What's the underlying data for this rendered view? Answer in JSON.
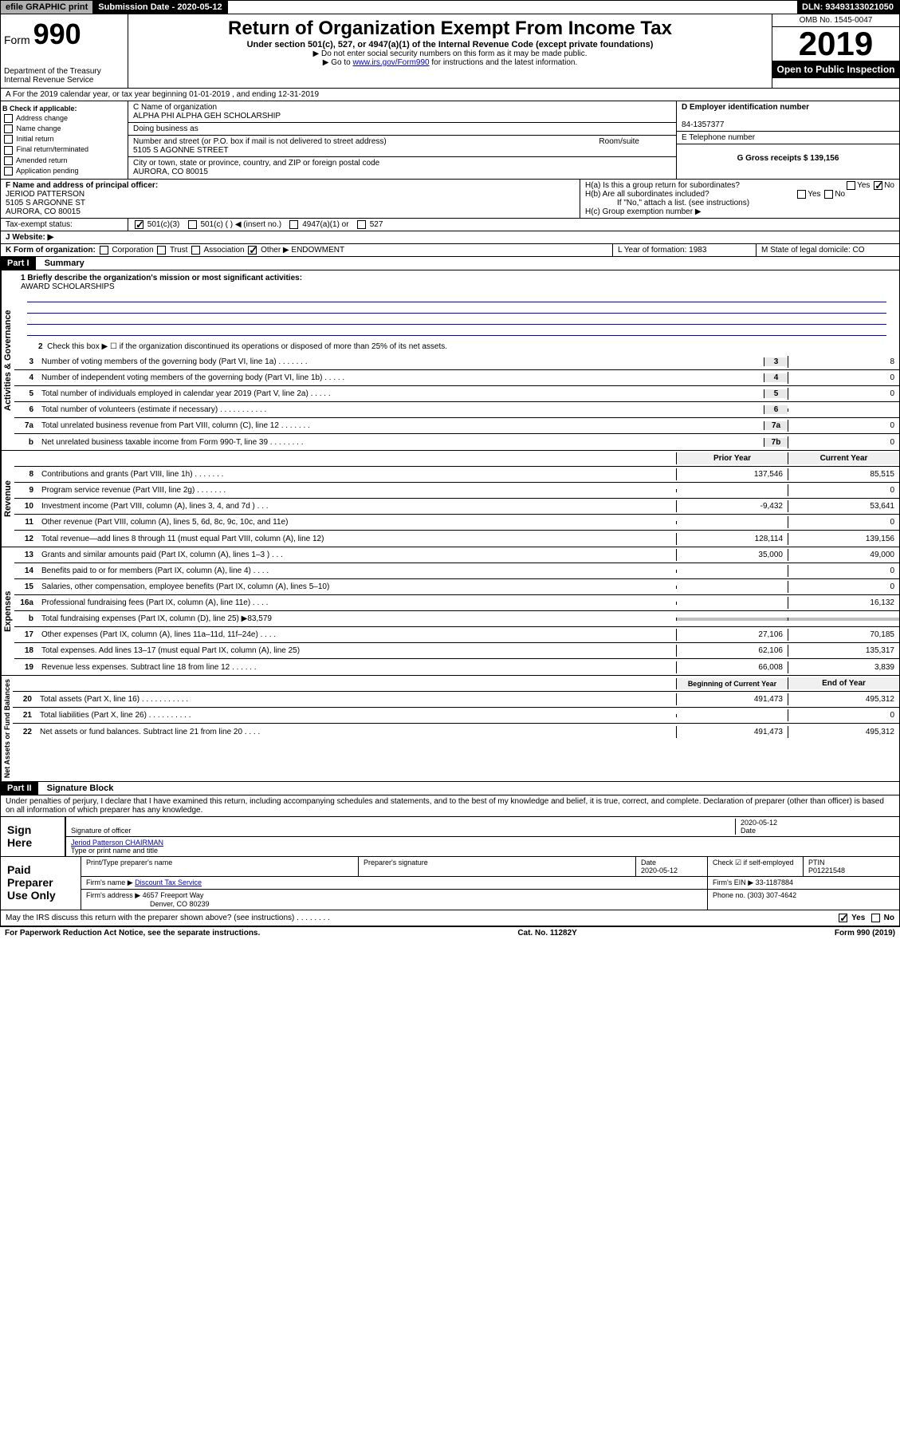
{
  "top": {
    "efile": "efile GRAPHIC print",
    "sub_date_label": "Submission Date - 2020-05-12",
    "dln": "DLN: 93493133021050"
  },
  "header": {
    "form_prefix": "Form",
    "form_num": "990",
    "dept": "Department of the Treasury",
    "irs": "Internal Revenue Service",
    "title": "Return of Organization Exempt From Income Tax",
    "subtitle": "Under section 501(c), 527, or 4947(a)(1) of the Internal Revenue Code (except private foundations)",
    "note1": "▶ Do not enter social security numbers on this form as it may be made public.",
    "note2_pre": "▶ Go to ",
    "note2_link": "www.irs.gov/Form990",
    "note2_post": " for instructions and the latest information.",
    "omb": "OMB No. 1545-0047",
    "year": "2019",
    "open": "Open to Public Inspection"
  },
  "period": {
    "text": "A For the 2019 calendar year, or tax year beginning 01-01-2019    , and ending 12-31-2019"
  },
  "sectionB": {
    "label": "B Check if applicable:",
    "items": [
      "Address change",
      "Name change",
      "Initial return",
      "Final return/terminated",
      "Amended return",
      "Application pending"
    ]
  },
  "sectionC": {
    "name_label": "C Name of organization",
    "name": "ALPHA PHI ALPHA GEH SCHOLARSHIP",
    "dba_label": "Doing business as",
    "addr_label": "Number and street (or P.O. box if mail is not delivered to street address)",
    "room_label": "Room/suite",
    "addr": "5105 S AGONNE STREET",
    "city_label": "City or town, state or province, country, and ZIP or foreign postal code",
    "city": "AURORA, CO  80015"
  },
  "sectionD": {
    "label": "D Employer identification number",
    "ein": "84-1357377",
    "tel_label": "E Telephone number",
    "gross_label": "G Gross receipts $ 139,156"
  },
  "sectionF": {
    "label": "F  Name and address of principal officer:",
    "name": "JERIOD PATTERSON",
    "addr1": "5105 S ARGONNE ST",
    "addr2": "AURORA, CO  80015"
  },
  "sectionH": {
    "a": "H(a)  Is this a group return for subordinates?",
    "b": "H(b)  Are all subordinates included?",
    "b_note": "If \"No,\" attach a list. (see instructions)",
    "c": "H(c)  Group exemption number ▶"
  },
  "taxExempt": {
    "label": "Tax-exempt status:",
    "opts": [
      "501(c)(3)",
      "501(c) (  ) ◀ (insert no.)",
      "4947(a)(1) or",
      "527"
    ]
  },
  "website": {
    "label": "J    Website: ▶"
  },
  "sectionK": {
    "label": "K Form of organization:",
    "opts": [
      "Corporation",
      "Trust",
      "Association",
      "Other ▶"
    ],
    "other_val": "ENDOWMENT"
  },
  "sectionL": {
    "label": "L Year of formation: 1983"
  },
  "sectionM": {
    "label": "M State of legal domicile: CO"
  },
  "part1": {
    "title": "Part I",
    "subtitle": "Summary",
    "line1_label": "1  Briefly describe the organization's mission or most significant activities:",
    "line1_val": "AWARD SCHOLARSHIPS",
    "line2": "Check this box ▶ ☐  if the organization discontinued its operations or disposed of more than 25% of its net assets."
  },
  "governance": {
    "label": "Activities & Governance",
    "rows": [
      {
        "n": "3",
        "desc": "Number of voting members of the governing body (Part VI, line 1a)   .    .    .    .    .    .    .",
        "box": "3",
        "val": "8"
      },
      {
        "n": "4",
        "desc": "Number of independent voting members of the governing body (Part VI, line 1b)  .    .    .    .    .",
        "box": "4",
        "val": "0"
      },
      {
        "n": "5",
        "desc": "Total number of individuals employed in calendar year 2019 (Part V, line 2a)   .    .    .    .    .",
        "box": "5",
        "val": "0"
      },
      {
        "n": "6",
        "desc": "Total number of volunteers (estimate if necessary)   .    .    .    .    .    .    .    .    .    .    .",
        "box": "6",
        "val": ""
      },
      {
        "n": "7a",
        "desc": "Total unrelated business revenue from Part VIII, column (C), line 12   .    .    .    .    .    .    .",
        "box": "7a",
        "val": "0"
      },
      {
        "n": "b",
        "desc": "Net unrelated business taxable income from Form 990-T, line 39   .    .    .    .    .    .    .    .",
        "box": "7b",
        "val": "0"
      }
    ]
  },
  "revenue": {
    "label": "Revenue",
    "header_prior": "Prior Year",
    "header_current": "Current Year",
    "rows": [
      {
        "n": "8",
        "desc": "Contributions and grants (Part VIII, line 1h)   .    .    .    .    .    .    .",
        "prior": "137,546",
        "curr": "85,515"
      },
      {
        "n": "9",
        "desc": "Program service revenue (Part VIII, line 2g)   .    .    .    .    .    .    .",
        "prior": "",
        "curr": "0"
      },
      {
        "n": "10",
        "desc": "Investment income (Part VIII, column (A), lines 3, 4, and 7d )   .    .    .",
        "prior": "-9,432",
        "curr": "53,641"
      },
      {
        "n": "11",
        "desc": "Other revenue (Part VIII, column (A), lines 5, 6d, 8c, 9c, 10c, and 11e)",
        "prior": "",
        "curr": "0"
      },
      {
        "n": "12",
        "desc": "Total revenue—add lines 8 through 11 (must equal Part VIII, column (A), line 12)",
        "prior": "128,114",
        "curr": "139,156"
      }
    ]
  },
  "expenses": {
    "label": "Expenses",
    "rows": [
      {
        "n": "13",
        "desc": "Grants and similar amounts paid (Part IX, column (A), lines 1–3 )   .    .    .",
        "prior": "35,000",
        "curr": "49,000"
      },
      {
        "n": "14",
        "desc": "Benefits paid to or for members (Part IX, column (A), line 4)   .    .    .    .",
        "prior": "",
        "curr": "0"
      },
      {
        "n": "15",
        "desc": "Salaries, other compensation, employee benefits (Part IX, column (A), lines 5–10)",
        "prior": "",
        "curr": "0"
      },
      {
        "n": "16a",
        "desc": "Professional fundraising fees (Part IX, column (A), line 11e)   .    .    .    .",
        "prior": "",
        "curr": "16,132"
      },
      {
        "n": "b",
        "desc": "Total fundraising expenses (Part IX, column (D), line 25) ▶83,579",
        "prior": "gray",
        "curr": "gray"
      },
      {
        "n": "17",
        "desc": "Other expenses (Part IX, column (A), lines 11a–11d, 11f–24e)   .    .    .    .",
        "prior": "27,106",
        "curr": "70,185"
      },
      {
        "n": "18",
        "desc": "Total expenses. Add lines 13–17 (must equal Part IX, column (A), line 25)",
        "prior": "62,106",
        "curr": "135,317"
      },
      {
        "n": "19",
        "desc": "Revenue less expenses. Subtract line 18 from line 12   .    .    .    .    .    .",
        "prior": "66,008",
        "curr": "3,839"
      }
    ]
  },
  "netassets": {
    "label": "Net Assets or Fund Balances",
    "header_prior": "Beginning of Current Year",
    "header_current": "End of Year",
    "rows": [
      {
        "n": "20",
        "desc": "Total assets (Part X, line 16)   .    .    .    .    .    .    .    .    .    .    .",
        "prior": "491,473",
        "curr": "495,312"
      },
      {
        "n": "21",
        "desc": "Total liabilities (Part X, line 26)   .    .    .    .    .    .    .    .    .    .",
        "prior": "",
        "curr": "0"
      },
      {
        "n": "22",
        "desc": "Net assets or fund balances. Subtract line 21 from line 20   .    .    .    .",
        "prior": "491,473",
        "curr": "495,312"
      }
    ]
  },
  "part2": {
    "title": "Part II",
    "subtitle": "Signature Block",
    "declaration": "Under penalties of perjury, I declare that I have examined this return, including accompanying schedules and statements, and to the best of my knowledge and belief, it is true, correct, and complete. Declaration of preparer (other than officer) is based on all information of which preparer has any knowledge."
  },
  "sign": {
    "label": "Sign Here",
    "sig_label": "Signature of officer",
    "date": "2020-05-12",
    "date_label": "Date",
    "name": "Jeriod Patterson CHAIRMAN",
    "name_label": "Type or print name and title"
  },
  "preparer": {
    "label": "Paid Preparer Use Only",
    "print_label": "Print/Type preparer's name",
    "sig_label": "Preparer's signature",
    "date_label": "Date",
    "date": "2020-05-12",
    "check_label": "Check ☑ if self-employed",
    "ptin_label": "PTIN",
    "ptin": "P01221548",
    "firm_name_label": "Firm's name    ▶",
    "firm_name": "Discount Tax Service",
    "firm_ein_label": "Firm's EIN ▶",
    "firm_ein": "33-1187884",
    "firm_addr_label": "Firm's address ▶",
    "firm_addr1": "4657 Freeport Way",
    "firm_addr2": "Denver, CO  80239",
    "phone_label": "Phone no. (303) 307-4642"
  },
  "discuss": {
    "text": "May the IRS discuss this return with the preparer shown above? (see instructions)    .    .    .    .    .    .    .    .",
    "yes": "Yes",
    "no": "No"
  },
  "footer": {
    "left": "For Paperwork Reduction Act Notice, see the separate instructions.",
    "mid": "Cat. No. 11282Y",
    "right": "Form 990 (2019)"
  }
}
